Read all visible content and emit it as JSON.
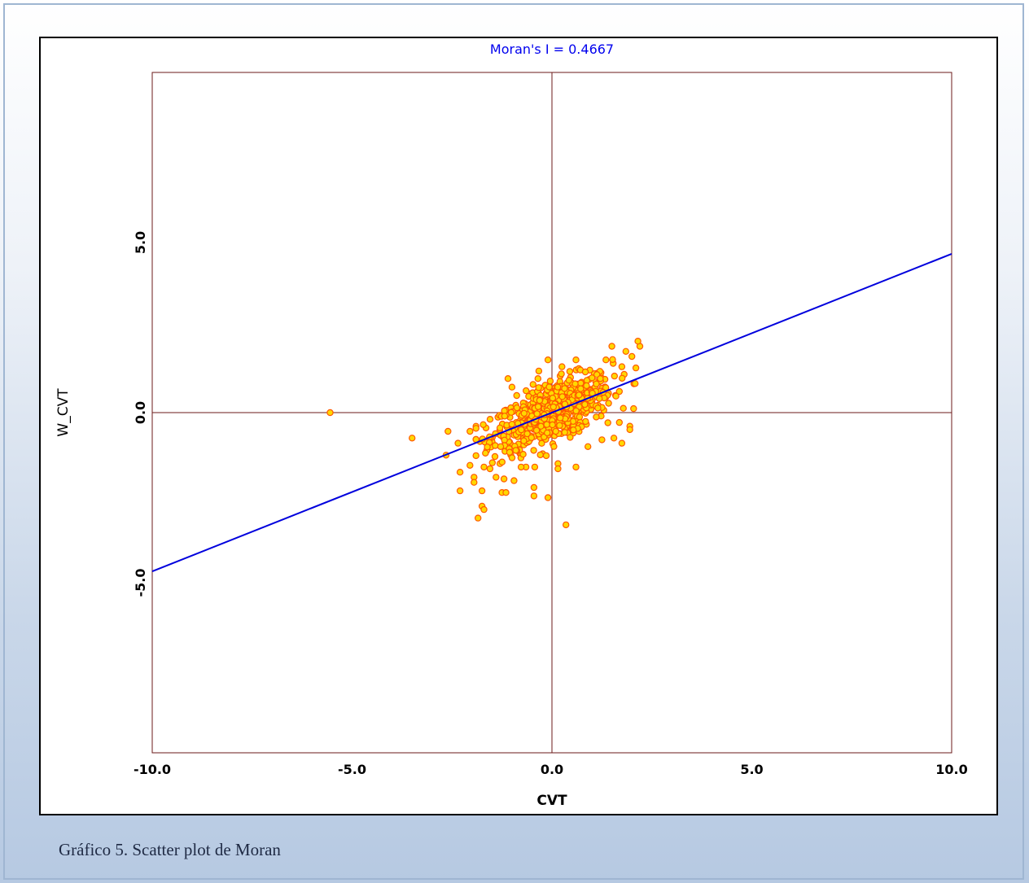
{
  "caption": "Gráfico 5. Scatter plot de Moran",
  "chart_data": {
    "type": "scatter",
    "title": "Moran's I = 0.4667",
    "xlabel": "CVT",
    "ylabel": "W_CVT",
    "xlim": [
      -10,
      10
    ],
    "ylim": [
      -10,
      10
    ],
    "x_ticks": [
      "-10.0",
      "-5.0",
      "0.0",
      "5.0",
      "10.0"
    ],
    "y_ticks": [
      "-5.0",
      "0.0",
      "5.0"
    ],
    "regression_slope": 0.4667,
    "colors": {
      "title": "#0000ee",
      "fit_line": "#0000dd",
      "point_fill": "#ffd800",
      "point_edge": "#ff5a00",
      "axes": "#6b1a1a"
    },
    "points": [
      [
        -5.55,
        0.0
      ],
      [
        -3.5,
        -0.75
      ],
      [
        -2.6,
        -0.55
      ],
      [
        -2.65,
        -1.25
      ],
      [
        -2.35,
        -0.9
      ],
      [
        -2.3,
        -1.75
      ],
      [
        -2.3,
        -2.3
      ],
      [
        -2.05,
        -1.55
      ],
      [
        -1.95,
        -1.9
      ],
      [
        -1.95,
        -2.05
      ],
      [
        -1.85,
        -3.1
      ],
      [
        -1.75,
        -2.3
      ],
      [
        -1.75,
        -2.75
      ],
      [
        -1.7,
        -2.85
      ],
      [
        -1.55,
        -1.65
      ],
      [
        -1.4,
        -1.9
      ],
      [
        -1.3,
        -1.5
      ],
      [
        -1.2,
        -1.95
      ],
      [
        -1.25,
        -2.35
      ],
      [
        -1.15,
        -2.35
      ],
      [
        -0.95,
        -2.0
      ],
      [
        -0.65,
        -1.6
      ],
      [
        -0.45,
        -2.2
      ],
      [
        -0.45,
        -2.45
      ],
      [
        -0.1,
        -2.5
      ],
      [
        0.15,
        -1.5
      ],
      [
        0.15,
        -1.65
      ],
      [
        0.35,
        -3.3
      ],
      [
        0.6,
        -1.6
      ],
      [
        1.25,
        -0.8
      ],
      [
        1.55,
        -0.75
      ],
      [
        1.75,
        -0.9
      ],
      [
        1.95,
        -0.4
      ],
      [
        1.95,
        -0.5
      ],
      [
        2.05,
        0.85
      ],
      [
        2.2,
        1.95
      ],
      [
        2.15,
        2.1
      ],
      [
        2.0,
        1.65
      ],
      [
        1.85,
        1.8
      ],
      [
        1.75,
        1.35
      ],
      [
        1.5,
        1.95
      ],
      [
        1.35,
        1.55
      ],
      [
        0.95,
        1.25
      ],
      [
        0.6,
        1.55
      ],
      [
        0.25,
        1.35
      ],
      [
        -0.1,
        1.55
      ],
      [
        -0.35,
        1.0
      ],
      [
        -1.1,
        1.0
      ],
      [
        -1.0,
        0.75
      ],
      [
        -2.05,
        -0.55
      ],
      [
        -1.8,
        -0.85
      ],
      [
        -1.65,
        -0.45
      ],
      [
        0.9,
        -1.0
      ],
      [
        1.4,
        -0.3
      ],
      [
        -0.8,
        -1.2
      ]
    ]
  }
}
